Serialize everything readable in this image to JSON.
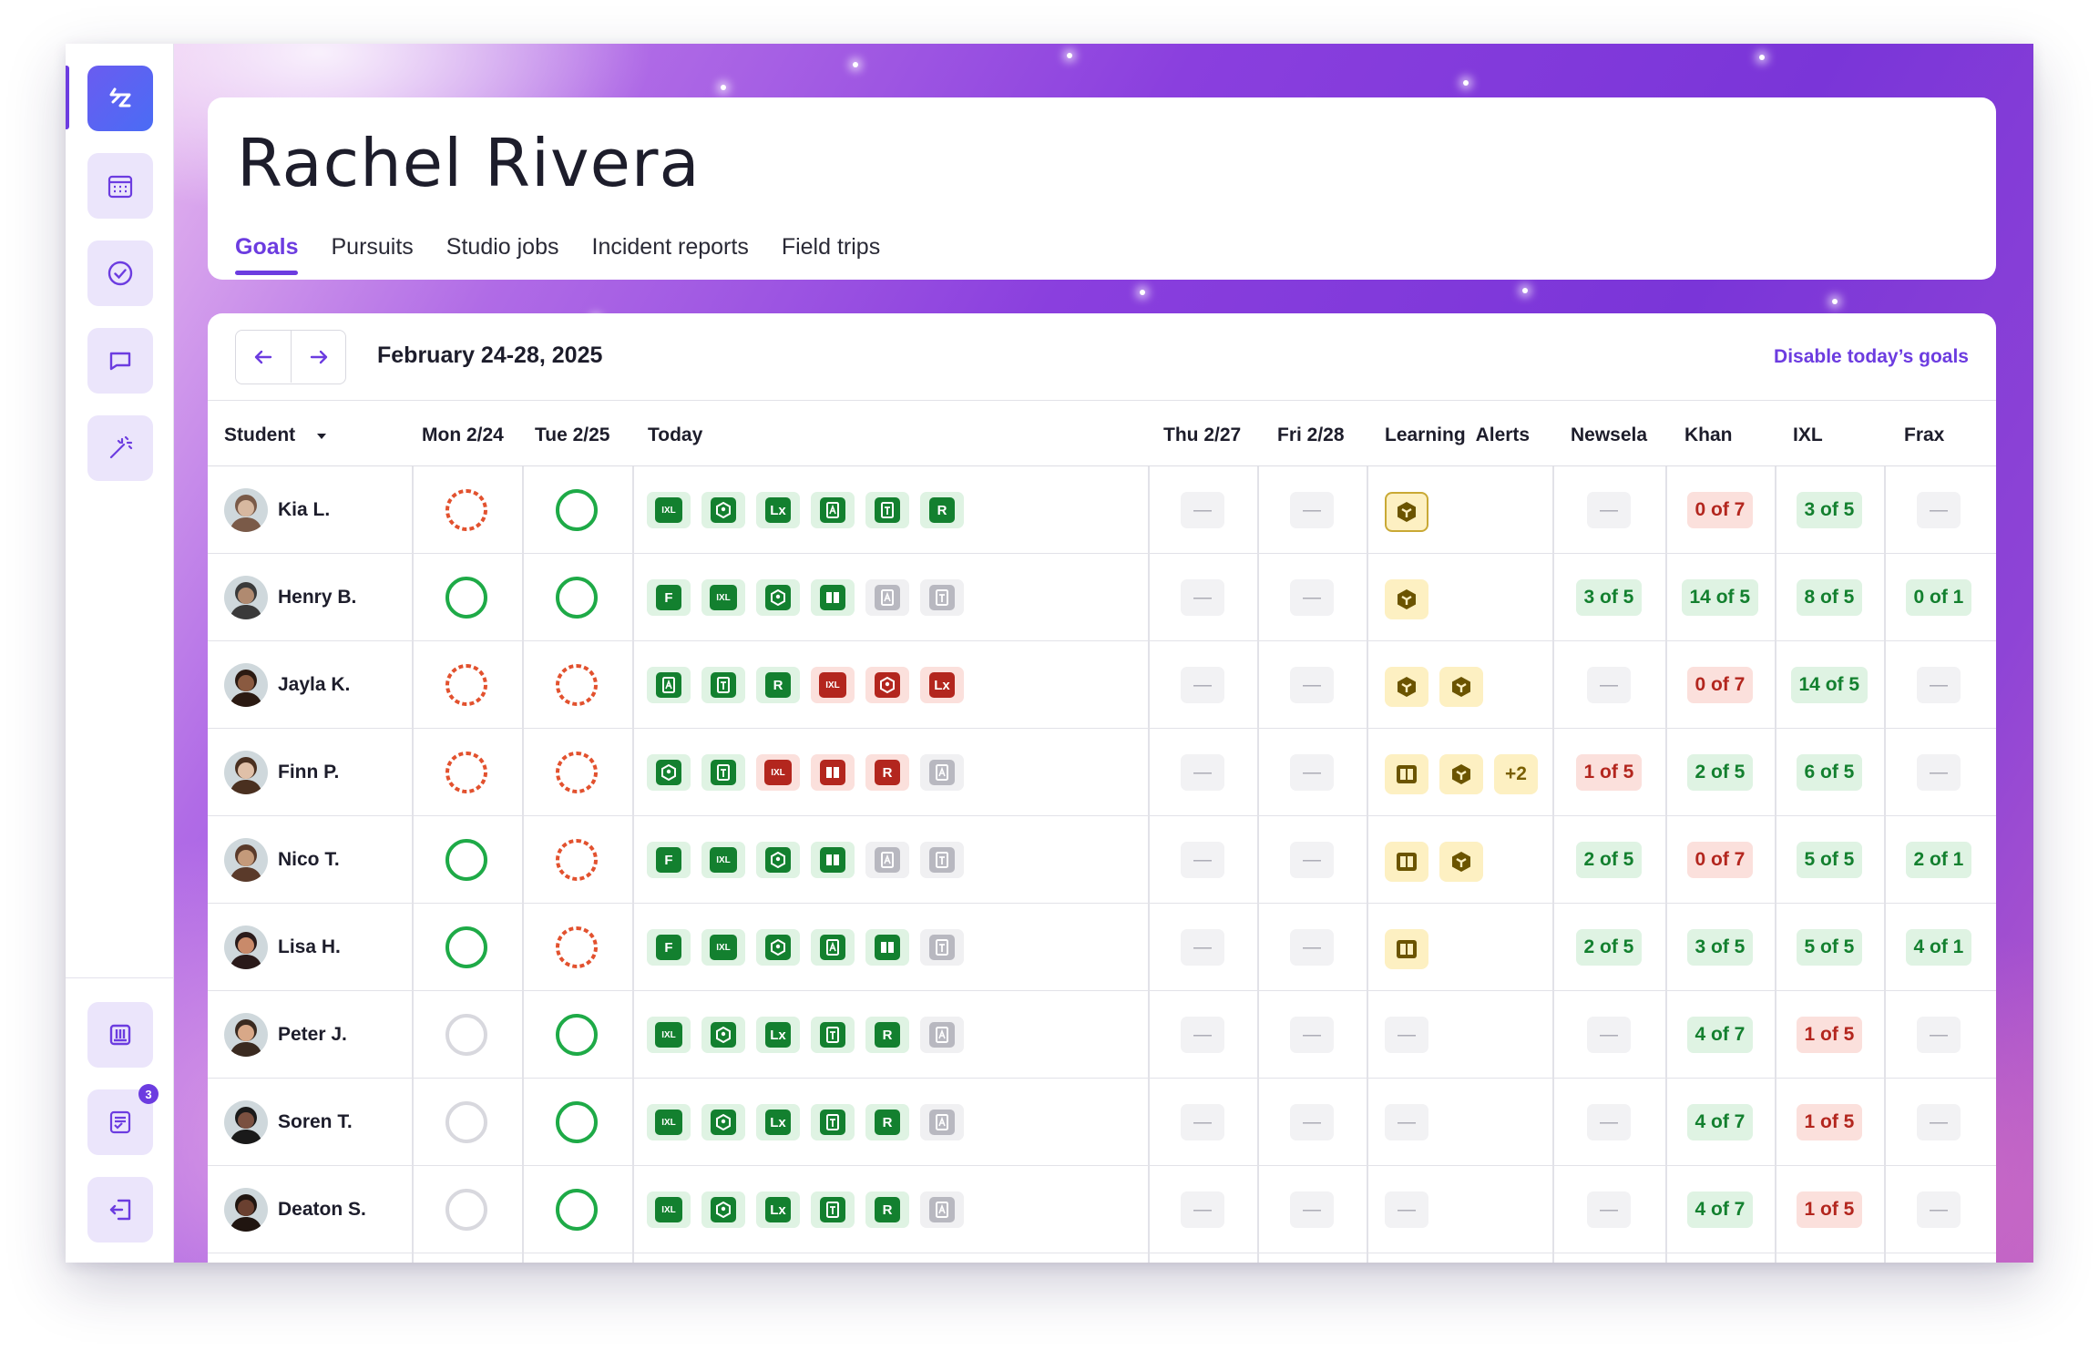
{
  "sidebar": {
    "badge_count": "3",
    "icons": [
      "app-logo-icon",
      "calendar-icon",
      "check-circle-icon",
      "message-icon",
      "magic-wand-icon",
      "archive-icon",
      "report-icon",
      "logout-icon"
    ]
  },
  "header": {
    "title": "Rachel Rivera",
    "tabs": [
      "Goals",
      "Pursuits",
      "Studio jobs",
      "Incident reports",
      "Field trips"
    ],
    "active_tab": "Goals"
  },
  "toolbar": {
    "date_range": "February 24-28, 2025",
    "disable_label": "Disable today’s goals"
  },
  "columns": {
    "student": "Student",
    "mon": "Mon 2/24",
    "tue": "Tue 2/25",
    "today": "Today",
    "thu": "Thu 2/27",
    "fri": "Fri 2/28",
    "alerts": "Learning  Alerts",
    "newsela": "Newsela",
    "khan": "Khan",
    "ixl": "IXL",
    "frax": "Frax"
  },
  "colors": {
    "accent": "#6c3ce0",
    "green": "#13802f",
    "red": "#b3261e",
    "amber": "#7a5f00"
  },
  "empty_symbol": "—",
  "rows": [
    {
      "name": "Kia L.",
      "mon": "partial",
      "tue": "complete",
      "today": [
        [
          "IXL",
          "g"
        ],
        [
          "K",
          "g"
        ],
        [
          "Lx",
          "g"
        ],
        [
          "A",
          "g"
        ],
        [
          "T",
          "g"
        ],
        [
          "R",
          "g"
        ]
      ],
      "alerts": [
        "khan-sel"
      ],
      "newsela": null,
      "khan": [
        "0 of 7",
        "r"
      ],
      "ixl": [
        "3 of 5",
        "g"
      ],
      "frax": null
    },
    {
      "name": "Henry B.",
      "mon": "complete",
      "tue": "complete",
      "today": [
        [
          "F",
          "g"
        ],
        [
          "IXL",
          "g"
        ],
        [
          "K",
          "g"
        ],
        [
          "B",
          "g"
        ],
        [
          "A",
          "x"
        ],
        [
          "T",
          "x"
        ]
      ],
      "alerts": [
        "khan"
      ],
      "newsela": [
        "3 of 5",
        "g"
      ],
      "khan": [
        "14 of 5",
        "g"
      ],
      "ixl": [
        "8 of 5",
        "g"
      ],
      "frax": [
        "0 of 1",
        "g"
      ]
    },
    {
      "name": "Jayla K.",
      "mon": "partial",
      "tue": "partial",
      "today": [
        [
          "A",
          "g"
        ],
        [
          "T",
          "g"
        ],
        [
          "R",
          "g"
        ],
        [
          "IXL",
          "r"
        ],
        [
          "K",
          "r"
        ],
        [
          "Lx",
          "r"
        ]
      ],
      "alerts": [
        "khan",
        "khan"
      ],
      "newsela": null,
      "khan": [
        "0 of 7",
        "r"
      ],
      "ixl": [
        "14 of 5",
        "g"
      ],
      "frax": null
    },
    {
      "name": "Finn P.",
      "mon": "partial",
      "tue": "partial",
      "today": [
        [
          "K",
          "g"
        ],
        [
          "T",
          "g"
        ],
        [
          "IXL",
          "r"
        ],
        [
          "B",
          "r"
        ],
        [
          "R",
          "r"
        ],
        [
          "A",
          "x"
        ]
      ],
      "alerts": [
        "book",
        "khan",
        "+2"
      ],
      "newsela": [
        "1 of 5",
        "r"
      ],
      "khan": [
        "2 of 5",
        "g"
      ],
      "ixl": [
        "6 of 5",
        "g"
      ],
      "frax": null
    },
    {
      "name": "Nico T.",
      "mon": "complete",
      "tue": "partial",
      "today": [
        [
          "F",
          "g"
        ],
        [
          "IXL",
          "g"
        ],
        [
          "K",
          "g"
        ],
        [
          "B",
          "g"
        ],
        [
          "A",
          "x"
        ],
        [
          "T",
          "x"
        ]
      ],
      "alerts": [
        "book",
        "khan"
      ],
      "newsela": [
        "2 of 5",
        "g"
      ],
      "khan": [
        "0 of 7",
        "r"
      ],
      "ixl": [
        "5 of 5",
        "g"
      ],
      "frax": [
        "2 of 1",
        "g"
      ]
    },
    {
      "name": "Lisa H.",
      "mon": "complete",
      "tue": "partial",
      "today": [
        [
          "F",
          "g"
        ],
        [
          "IXL",
          "g"
        ],
        [
          "K",
          "g"
        ],
        [
          "A",
          "g"
        ],
        [
          "B",
          "g"
        ],
        [
          "T",
          "x"
        ]
      ],
      "alerts": [
        "book"
      ],
      "newsela": [
        "2 of 5",
        "g"
      ],
      "khan": [
        "3 of 5",
        "g"
      ],
      "ixl": [
        "5 of 5",
        "g"
      ],
      "frax": [
        "4 of 1",
        "g"
      ]
    },
    {
      "name": "Peter J.",
      "mon": "empty",
      "tue": "complete",
      "today": [
        [
          "IXL",
          "g"
        ],
        [
          "K",
          "g"
        ],
        [
          "Lx",
          "g"
        ],
        [
          "T",
          "g"
        ],
        [
          "R",
          "g"
        ],
        [
          "A",
          "x"
        ]
      ],
      "alerts": [],
      "newsela": null,
      "khan": [
        "4 of 7",
        "g"
      ],
      "ixl": [
        "1 of 5",
        "r"
      ],
      "frax": null
    },
    {
      "name": "Soren T.",
      "mon": "empty",
      "tue": "complete",
      "today": [
        [
          "IXL",
          "g"
        ],
        [
          "K",
          "g"
        ],
        [
          "Lx",
          "g"
        ],
        [
          "T",
          "g"
        ],
        [
          "R",
          "g"
        ],
        [
          "A",
          "x"
        ]
      ],
      "alerts": [],
      "newsela": null,
      "khan": [
        "4 of 7",
        "g"
      ],
      "ixl": [
        "1 of 5",
        "r"
      ],
      "frax": null
    },
    {
      "name": "Deaton S.",
      "mon": "empty",
      "tue": "complete",
      "today": [
        [
          "IXL",
          "g"
        ],
        [
          "K",
          "g"
        ],
        [
          "Lx",
          "g"
        ],
        [
          "T",
          "g"
        ],
        [
          "R",
          "g"
        ],
        [
          "A",
          "x"
        ]
      ],
      "alerts": [],
      "newsela": null,
      "khan": [
        "4 of 7",
        "g"
      ],
      "ixl": [
        "1 of 5",
        "r"
      ],
      "frax": null
    }
  ]
}
